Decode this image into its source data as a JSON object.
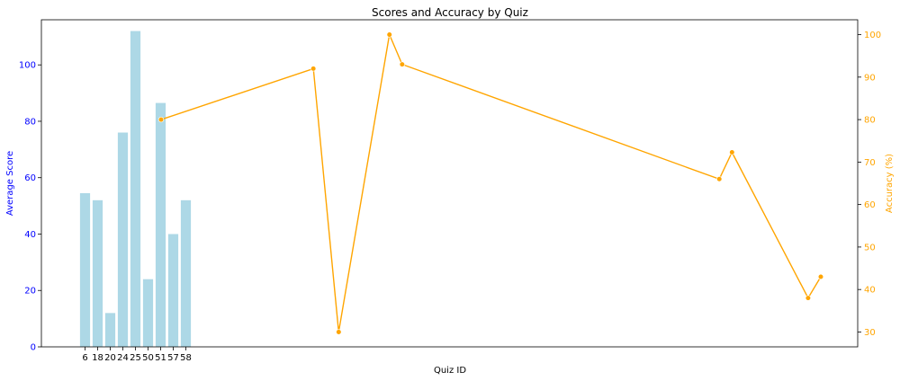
{
  "chart_data": {
    "type": "bar",
    "title": "Scores and Accuracy by Quiz",
    "xlabel": "Quiz ID",
    "ylabel": "Average Score",
    "ylabel_right": "Accuracy (%)",
    "categories": [
      "6",
      "18",
      "20",
      "24",
      "25",
      "50",
      "51",
      "57",
      "58"
    ],
    "bar_series": {
      "name": "",
      "values": [
        54.5,
        52,
        12,
        76,
        112,
        24,
        86.5,
        40,
        52
      ],
      "color": "#add8e6"
    },
    "line_series": {
      "name": "",
      "x": [
        6,
        18,
        20,
        24,
        25,
        50,
        51,
        57,
        58
      ],
      "values": [
        80,
        92,
        30,
        100,
        93,
        66,
        72.3,
        38,
        43
      ],
      "color": "#ffa500"
    },
    "y_left": {
      "ylim": [
        0,
        116
      ],
      "ticks": [
        0,
        20,
        40,
        60,
        80,
        100
      ],
      "color": "#0000ff"
    },
    "y_right": {
      "ylim": [
        26.5,
        103.5
      ],
      "ticks": [
        30,
        40,
        50,
        60,
        70,
        80,
        90,
        100
      ],
      "color": "#ffa500"
    },
    "grid": false,
    "legend": "none"
  }
}
